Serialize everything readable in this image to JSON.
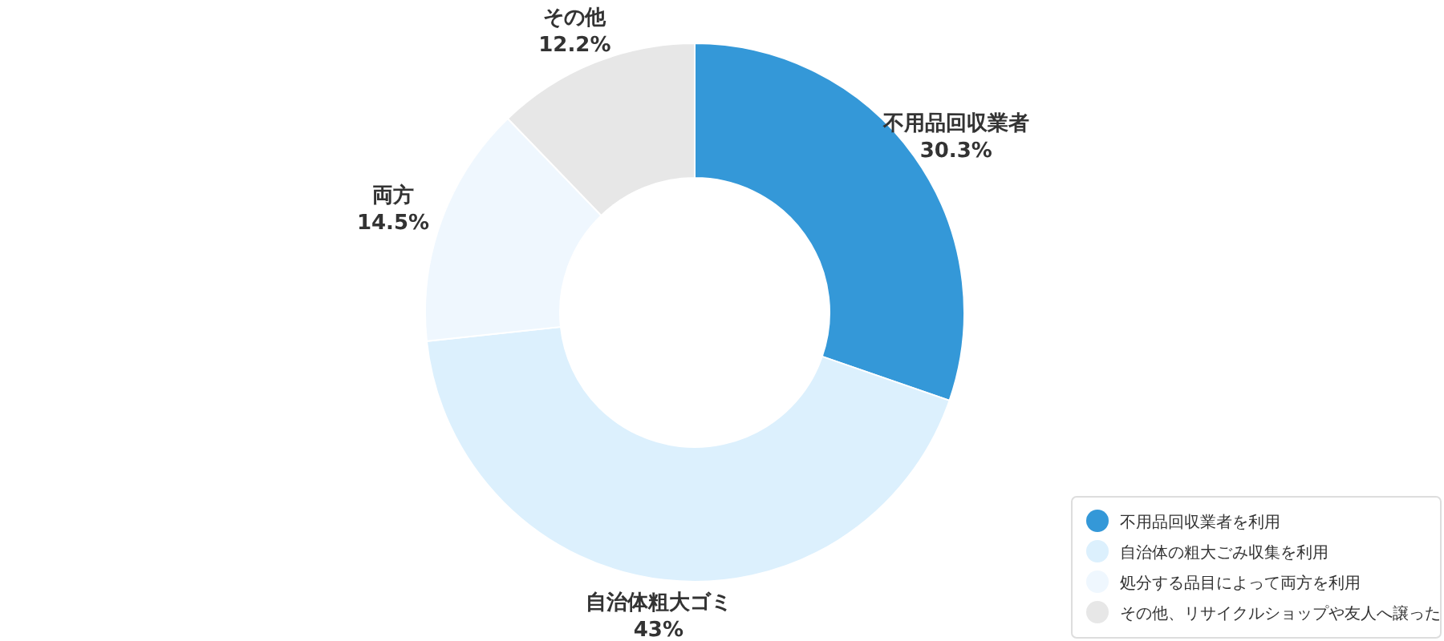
{
  "chart_data": {
    "type": "donut",
    "categories": [
      "不用品回収業者を利用",
      "自治体の粗大ごみ収集を利用",
      "処分する品目によって両方を利用",
      "その他、リサイクルショップや友人へ譲った"
    ],
    "values": [
      30.3,
      43,
      14.5,
      12.2
    ],
    "colors": [
      "#3498d8",
      "#dcf0fd",
      "#eff7fe",
      "#e7e7e7"
    ],
    "value_labels": [
      "不用品回収業者\n30.3%",
      "自治体粗大ゴミ\n43%",
      "両方\n14.5%",
      "その他\n12.2%"
    ],
    "legend": "bottom right"
  }
}
